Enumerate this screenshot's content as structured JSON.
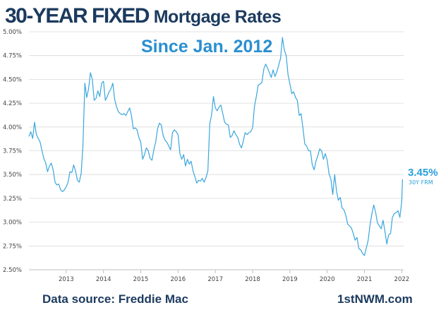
{
  "chart_data": {
    "type": "line",
    "title_bold": "30-YEAR FIXED",
    "title_rest": "Mortgage Rates",
    "subtitle": "Since Jan. 2012",
    "yticks": [
      "5.00%",
      "4.75%",
      "4.50%",
      "4.25%",
      "4.00%",
      "3.75%",
      "3.50%",
      "3.25%",
      "3.00%",
      "2.75%",
      "2.50%"
    ],
    "ytick_values": [
      5.0,
      4.75,
      4.5,
      4.25,
      4.0,
      3.75,
      3.5,
      3.25,
      3.0,
      2.75,
      2.5
    ],
    "xticks": [
      "2013",
      "2014",
      "2015",
      "2016",
      "2017",
      "2018",
      "2019",
      "2020",
      "2021",
      "2022"
    ],
    "xtick_values": [
      2013,
      2014,
      2015,
      2016,
      2017,
      2018,
      2019,
      2020,
      2021,
      2022
    ],
    "xlim": [
      2012.0,
      2022.05
    ],
    "ylim": [
      2.5,
      5.05
    ],
    "grid": "horizontal",
    "colors": {
      "line": "#3aa6de",
      "grid": "#d9d9d9",
      "title": "#1c3a5e",
      "accent": "#2a8fd0"
    },
    "end_value": "3.45%",
    "end_label": "30Y FRM",
    "series": [
      {
        "x": [
          2012.0,
          2012.05,
          2012.1,
          2012.15,
          2012.2,
          2012.25,
          2012.3,
          2012.35,
          2012.4,
          2012.45,
          2012.5,
          2012.55,
          2012.6,
          2012.65,
          2012.7,
          2012.75,
          2012.8,
          2012.85,
          2012.9,
          2012.95,
          2013.0,
          2013.05,
          2013.1,
          2013.15,
          2013.2,
          2013.25,
          2013.3,
          2013.35,
          2013.4,
          2013.45,
          2013.5,
          2013.55,
          2013.6,
          2013.65,
          2013.7,
          2013.75,
          2013.8,
          2013.85,
          2013.9,
          2013.95,
          2014.0,
          2014.05,
          2014.1,
          2014.15,
          2014.2,
          2014.25,
          2014.3,
          2014.35,
          2014.4,
          2014.45,
          2014.5,
          2014.55,
          2014.6,
          2014.65,
          2014.7,
          2014.75,
          2014.8,
          2014.85,
          2014.9,
          2014.95,
          2015.0,
          2015.05,
          2015.1,
          2015.15,
          2015.2,
          2015.25,
          2015.3,
          2015.35,
          2015.4,
          2015.45,
          2015.5,
          2015.55,
          2015.6,
          2015.65,
          2015.7,
          2015.75,
          2015.8,
          2015.85,
          2015.9,
          2015.95,
          2016.0,
          2016.05,
          2016.1,
          2016.15,
          2016.2,
          2016.25,
          2016.3,
          2016.35,
          2016.4,
          2016.45,
          2016.5,
          2016.55,
          2016.6,
          2016.65,
          2016.7,
          2016.75,
          2016.8,
          2016.85,
          2016.9,
          2016.95,
          2017.0,
          2017.05,
          2017.1,
          2017.15,
          2017.2,
          2017.25,
          2017.3,
          2017.35,
          2017.4,
          2017.45,
          2017.5,
          2017.55,
          2017.6,
          2017.65,
          2017.7,
          2017.75,
          2017.8,
          2017.85,
          2017.9,
          2017.95,
          2018.0,
          2018.05,
          2018.1,
          2018.15,
          2018.2,
          2018.25,
          2018.3,
          2018.35,
          2018.4,
          2018.45,
          2018.5,
          2018.55,
          2018.6,
          2018.65,
          2018.7,
          2018.75,
          2018.8,
          2018.85,
          2018.9,
          2018.95,
          2019.0,
          2019.05,
          2019.1,
          2019.15,
          2019.2,
          2019.25,
          2019.3,
          2019.35,
          2019.4,
          2019.45,
          2019.5,
          2019.55,
          2019.6,
          2019.65,
          2019.7,
          2019.75,
          2019.8,
          2019.85,
          2019.9,
          2019.95,
          2020.0,
          2020.05,
          2020.1,
          2020.15,
          2020.2,
          2020.25,
          2020.3,
          2020.35,
          2020.4,
          2020.45,
          2020.5,
          2020.55,
          2020.6,
          2020.65,
          2020.7,
          2020.75,
          2020.8,
          2020.85,
          2020.9,
          2020.95,
          2021.0,
          2021.05,
          2021.1,
          2021.15,
          2021.2,
          2021.25,
          2021.3,
          2021.35,
          2021.4,
          2021.45,
          2021.5,
          2021.55,
          2021.6,
          2021.65,
          2021.7,
          2021.75,
          2021.8,
          2021.85,
          2021.9,
          2021.95,
          2022.0,
          2022.02
        ],
        "y": [
          3.9,
          3.95,
          3.88,
          4.05,
          3.92,
          3.88,
          3.84,
          3.75,
          3.67,
          3.62,
          3.53,
          3.59,
          3.62,
          3.55,
          3.42,
          3.39,
          3.4,
          3.34,
          3.32,
          3.34,
          3.37,
          3.42,
          3.53,
          3.52,
          3.6,
          3.54,
          3.44,
          3.42,
          3.51,
          3.81,
          4.46,
          4.31,
          4.4,
          4.57,
          4.5,
          4.28,
          4.3,
          4.38,
          4.32,
          4.46,
          4.48,
          4.28,
          4.32,
          4.37,
          4.4,
          4.46,
          4.29,
          4.21,
          4.16,
          4.14,
          4.13,
          4.14,
          4.12,
          4.16,
          4.2,
          4.12,
          3.98,
          3.99,
          3.97,
          3.89,
          3.84,
          3.66,
          3.71,
          3.78,
          3.75,
          3.67,
          3.65,
          3.76,
          3.84,
          3.98,
          4.04,
          4.02,
          3.91,
          3.86,
          3.84,
          3.8,
          3.76,
          3.94,
          3.97,
          3.95,
          3.92,
          3.72,
          3.66,
          3.71,
          3.59,
          3.66,
          3.61,
          3.64,
          3.54,
          3.48,
          3.41,
          3.44,
          3.43,
          3.46,
          3.42,
          3.47,
          3.54,
          4.03,
          4.13,
          4.32,
          4.2,
          4.17,
          4.21,
          4.23,
          4.14,
          4.05,
          4.03,
          4.02,
          3.89,
          3.91,
          3.96,
          3.92,
          3.89,
          3.82,
          3.78,
          3.85,
          3.94,
          3.92,
          3.94,
          3.95,
          3.99,
          4.22,
          4.32,
          4.44,
          4.45,
          4.47,
          4.61,
          4.66,
          4.62,
          4.57,
          4.52,
          4.6,
          4.53,
          4.58,
          4.65,
          4.72,
          4.94,
          4.81,
          4.75,
          4.55,
          4.45,
          4.35,
          4.37,
          4.31,
          4.28,
          4.12,
          4.14,
          3.99,
          3.82,
          3.8,
          3.75,
          3.75,
          3.6,
          3.55,
          3.64,
          3.7,
          3.77,
          3.75,
          3.66,
          3.72,
          3.65,
          3.51,
          3.45,
          3.29,
          3.5,
          3.33,
          3.23,
          3.26,
          3.15,
          3.13,
          3.07,
          2.98,
          2.96,
          2.94,
          2.88,
          2.81,
          2.84,
          2.72,
          2.71,
          2.67,
          2.65,
          2.73,
          2.81,
          2.97,
          3.09,
          3.18,
          3.1,
          2.99,
          2.96,
          2.93,
          3.02,
          2.9,
          2.77,
          2.87,
          2.88,
          3.05,
          3.09,
          3.1,
          3.12,
          3.05,
          3.22,
          3.45
        ]
      }
    ]
  },
  "footer": {
    "source": "Data source: Freddie Mac",
    "brand": "1stNWM.com"
  }
}
